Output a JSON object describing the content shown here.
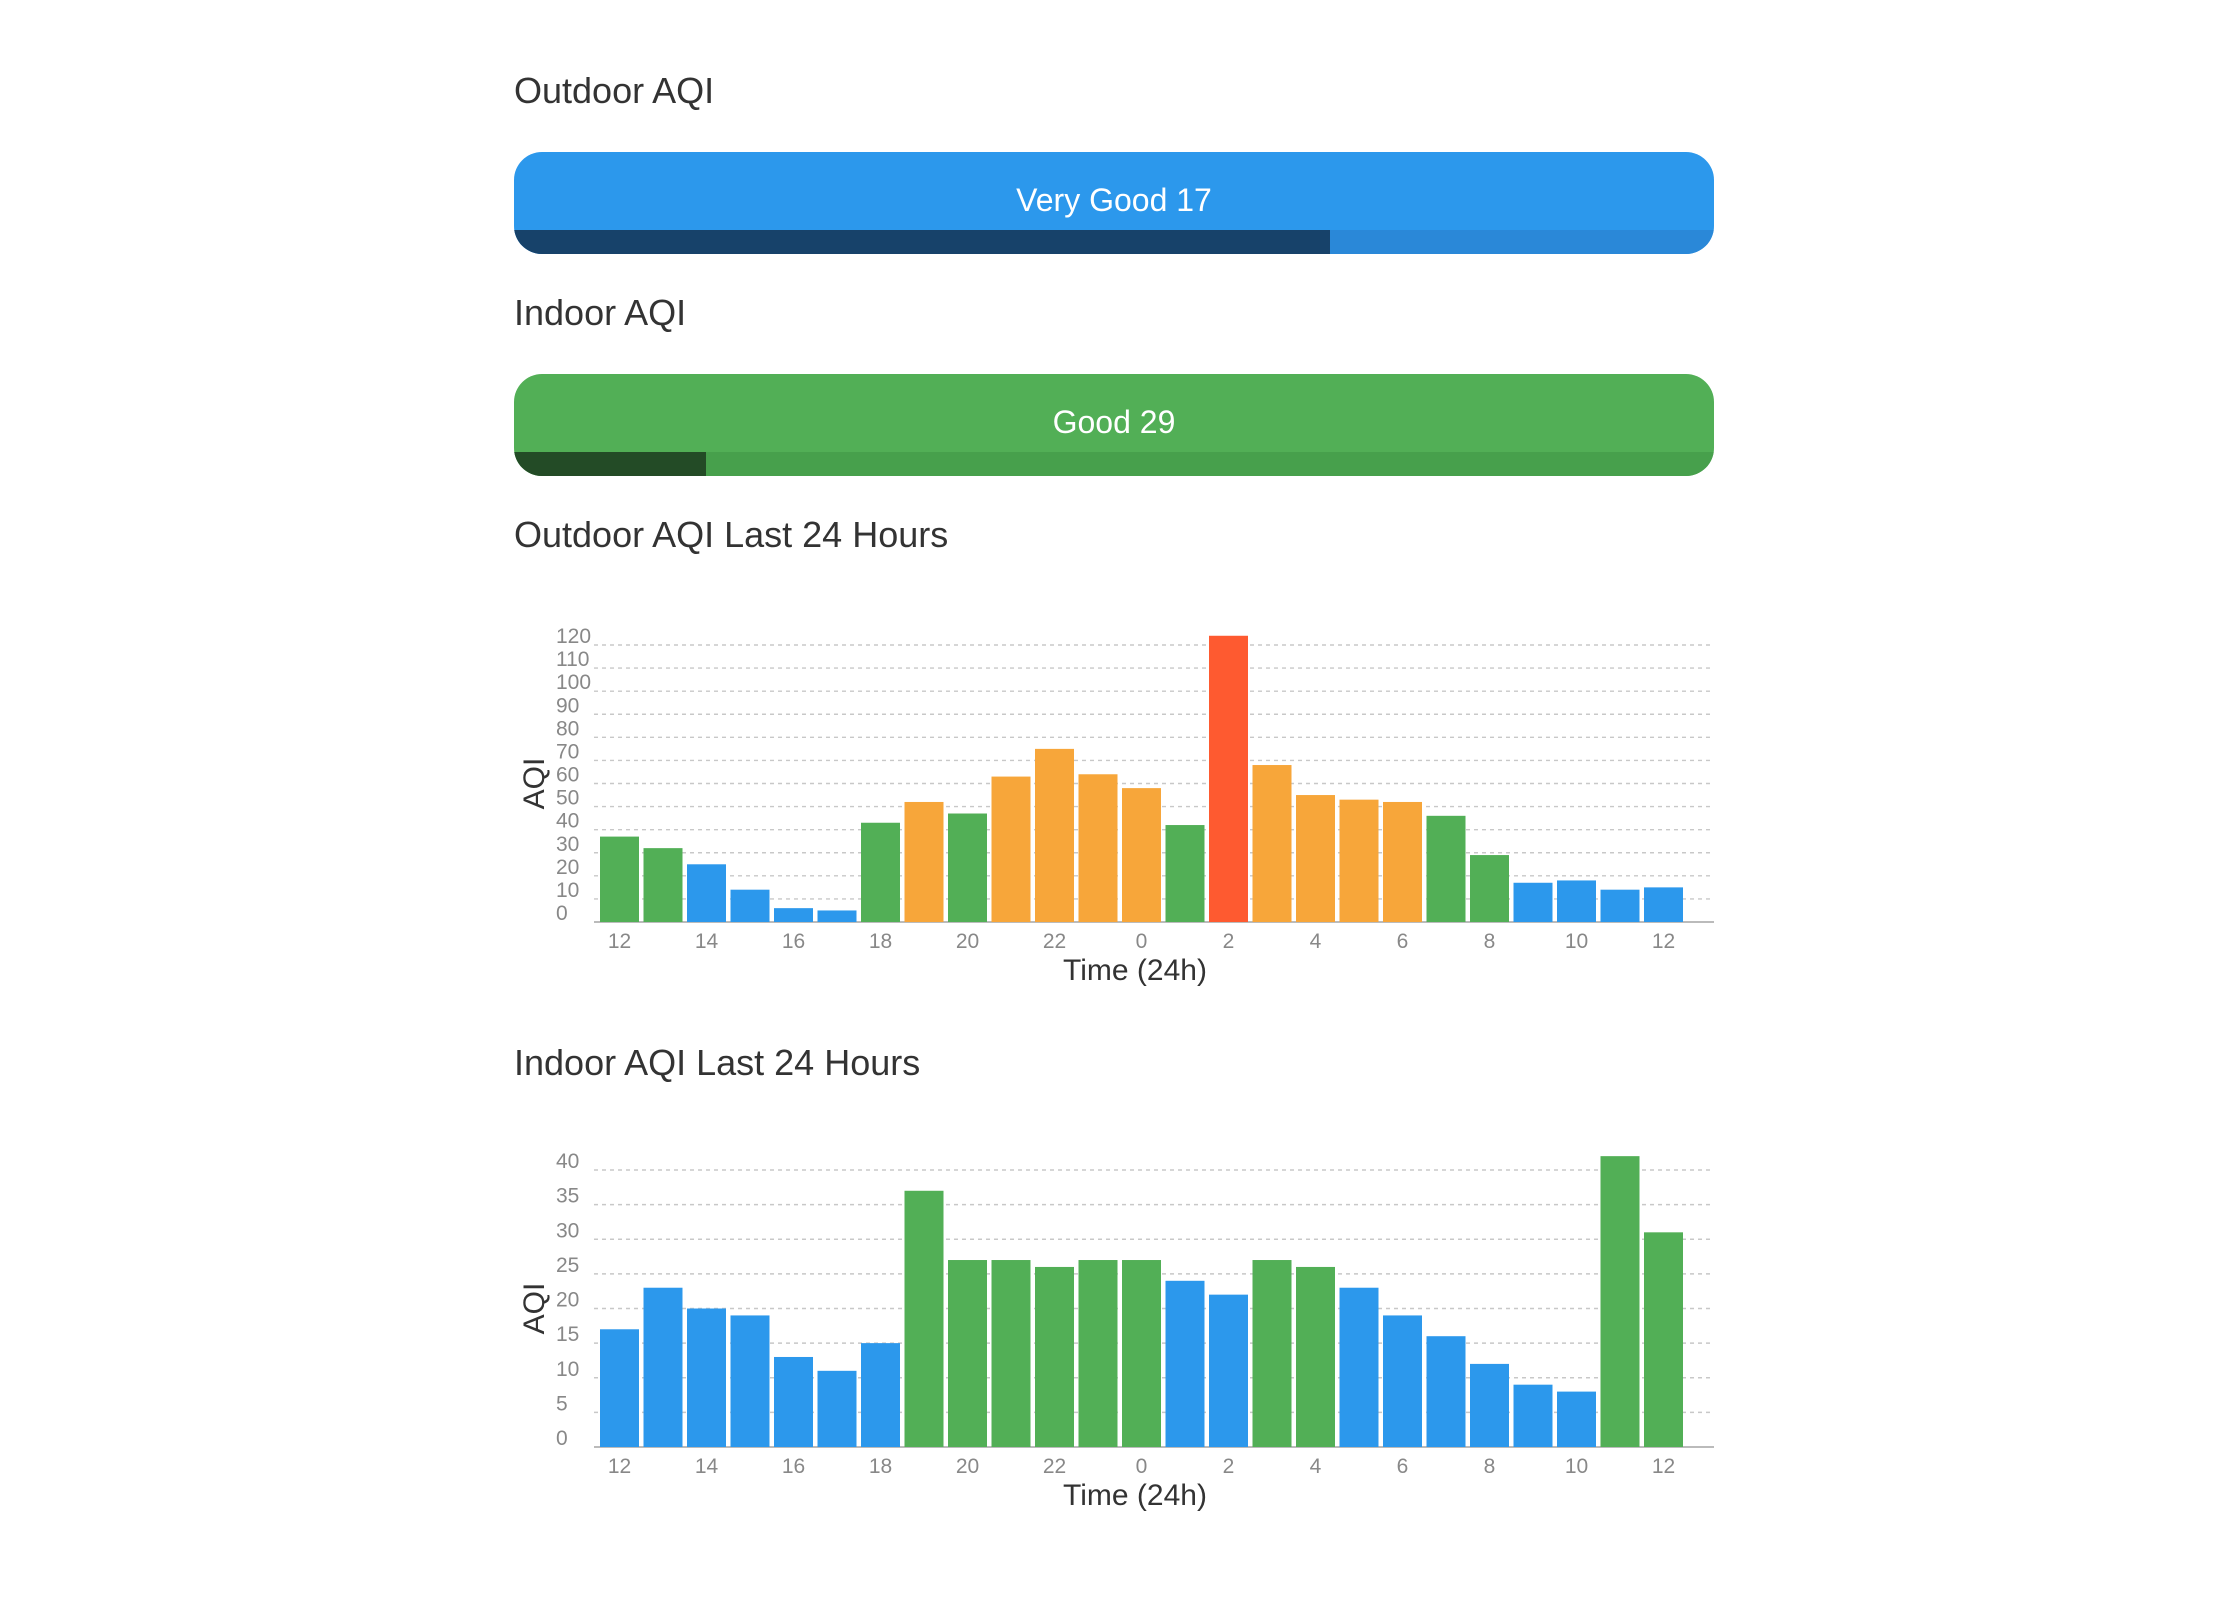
{
  "outdoor": {
    "title": "Outdoor AQI",
    "label": "Very Good 17",
    "color": "#2c98ec",
    "track_color": "#2a88d8",
    "fill_color": "#17426a",
    "level_fraction": 0.68
  },
  "indoor": {
    "title": "Indoor AQI",
    "label": "Good 29",
    "color": "#52af56",
    "track_color": "#47a04c",
    "fill_color": "#234b26",
    "level_fraction": 0.16
  },
  "outdoor_chart_title": "Outdoor AQI Last 24 Hours",
  "indoor_chart_title": "Indoor AQI Last 24 Hours",
  "colors": {
    "blue": "#2c98ec",
    "green": "#52af56",
    "orange": "#f7a63a",
    "red": "#fe5a30",
    "grid": "#c8c8c8",
    "axis": "#bbbbbb"
  },
  "chart_data": [
    {
      "type": "bar",
      "title": "Outdoor AQI Last 24 Hours",
      "xlabel": "Time (24h)",
      "ylabel": "AQI",
      "ylim": [
        0,
        120
      ],
      "yticks": [
        0,
        10,
        20,
        30,
        40,
        50,
        60,
        70,
        80,
        90,
        100,
        110,
        120
      ],
      "xtick_labels": [
        "12",
        "14",
        "16",
        "18",
        "20",
        "22",
        "0",
        "2",
        "4",
        "6",
        "8",
        "10",
        "12"
      ],
      "categories": [
        "12",
        "13",
        "14",
        "15",
        "16",
        "17",
        "18",
        "19",
        "20",
        "21",
        "22",
        "23",
        "0",
        "1",
        "2",
        "3",
        "4",
        "5",
        "6",
        "7",
        "8",
        "9",
        "10",
        "11",
        "12"
      ],
      "values": [
        37,
        32,
        25,
        14,
        6,
        5,
        43,
        52,
        47,
        63,
        75,
        64,
        58,
        42,
        124,
        68,
        55,
        53,
        52,
        46,
        29,
        17,
        18,
        14,
        15
      ],
      "bar_colors": [
        "green",
        "green",
        "blue",
        "blue",
        "blue",
        "blue",
        "green",
        "orange",
        "green",
        "orange",
        "orange",
        "orange",
        "orange",
        "green",
        "red",
        "orange",
        "orange",
        "orange",
        "orange",
        "green",
        "green",
        "blue",
        "blue",
        "blue",
        "blue"
      ],
      "grid": true
    },
    {
      "type": "bar",
      "title": "Indoor AQI Last 24 Hours",
      "xlabel": "Time (24h)",
      "ylabel": "AQI",
      "ylim": [
        0,
        40
      ],
      "yticks": [
        0,
        5,
        10,
        15,
        20,
        25,
        30,
        35,
        40
      ],
      "xtick_labels": [
        "12",
        "14",
        "16",
        "18",
        "20",
        "22",
        "0",
        "2",
        "4",
        "6",
        "8",
        "10",
        "12"
      ],
      "categories": [
        "12",
        "13",
        "14",
        "15",
        "16",
        "17",
        "18",
        "19",
        "20",
        "21",
        "22",
        "23",
        "0",
        "1",
        "2",
        "3",
        "4",
        "5",
        "6",
        "7",
        "8",
        "9",
        "10",
        "11",
        "12"
      ],
      "values": [
        17,
        23,
        20,
        19,
        13,
        11,
        15,
        37,
        27,
        27,
        26,
        27,
        27,
        24,
        22,
        27,
        26,
        23,
        19,
        16,
        12,
        9,
        8,
        42,
        31
      ],
      "bar_colors": [
        "blue",
        "blue",
        "blue",
        "blue",
        "blue",
        "blue",
        "blue",
        "green",
        "green",
        "green",
        "green",
        "green",
        "green",
        "blue",
        "blue",
        "green",
        "green",
        "blue",
        "blue",
        "blue",
        "blue",
        "blue",
        "blue",
        "green",
        "green"
      ],
      "grid": true
    }
  ]
}
